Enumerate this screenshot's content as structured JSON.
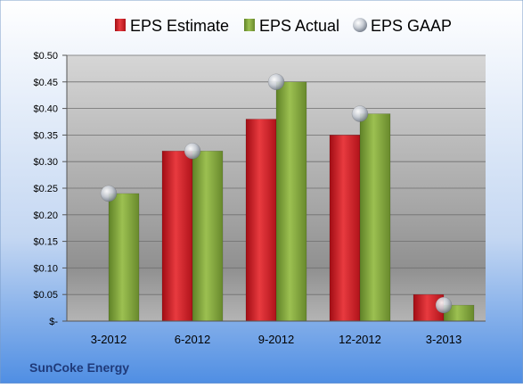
{
  "company": "SunCoke Energy",
  "colors": {
    "estimate": "#d01f25",
    "actual": "#86aa3a",
    "gaap": "#c7ccd4",
    "company_text": "#1f3a7a"
  },
  "chart_data": {
    "type": "bar",
    "categories": [
      "3-2012",
      "6-2012",
      "9-2012",
      "12-2012",
      "3-2013"
    ],
    "series": [
      {
        "name": "EPS Estimate",
        "values": [
          null,
          0.32,
          0.38,
          0.35,
          0.05
        ]
      },
      {
        "name": "EPS Actual",
        "values": [
          0.24,
          0.32,
          0.45,
          0.39,
          0.03
        ]
      }
    ],
    "markers": [
      {
        "name": "EPS GAAP",
        "values": [
          0.24,
          0.32,
          0.45,
          0.39,
          0.03
        ]
      }
    ],
    "y_ticks": [
      {
        "value": 0.5,
        "label": "$0.50"
      },
      {
        "value": 0.45,
        "label": "$0.45"
      },
      {
        "value": 0.4,
        "label": "$0.40"
      },
      {
        "value": 0.35,
        "label": "$0.35"
      },
      {
        "value": 0.3,
        "label": "$0.30"
      },
      {
        "value": 0.25,
        "label": "$0.25"
      },
      {
        "value": 0.2,
        "label": "$0.20"
      },
      {
        "value": 0.15,
        "label": "$0.15"
      },
      {
        "value": 0.1,
        "label": "$0.10"
      },
      {
        "value": 0.05,
        "label": "$0.05"
      },
      {
        "value": 0.0,
        "label": "$-"
      }
    ],
    "ylim": [
      0,
      0.5
    ],
    "grid": true,
    "legend_position": "top"
  }
}
